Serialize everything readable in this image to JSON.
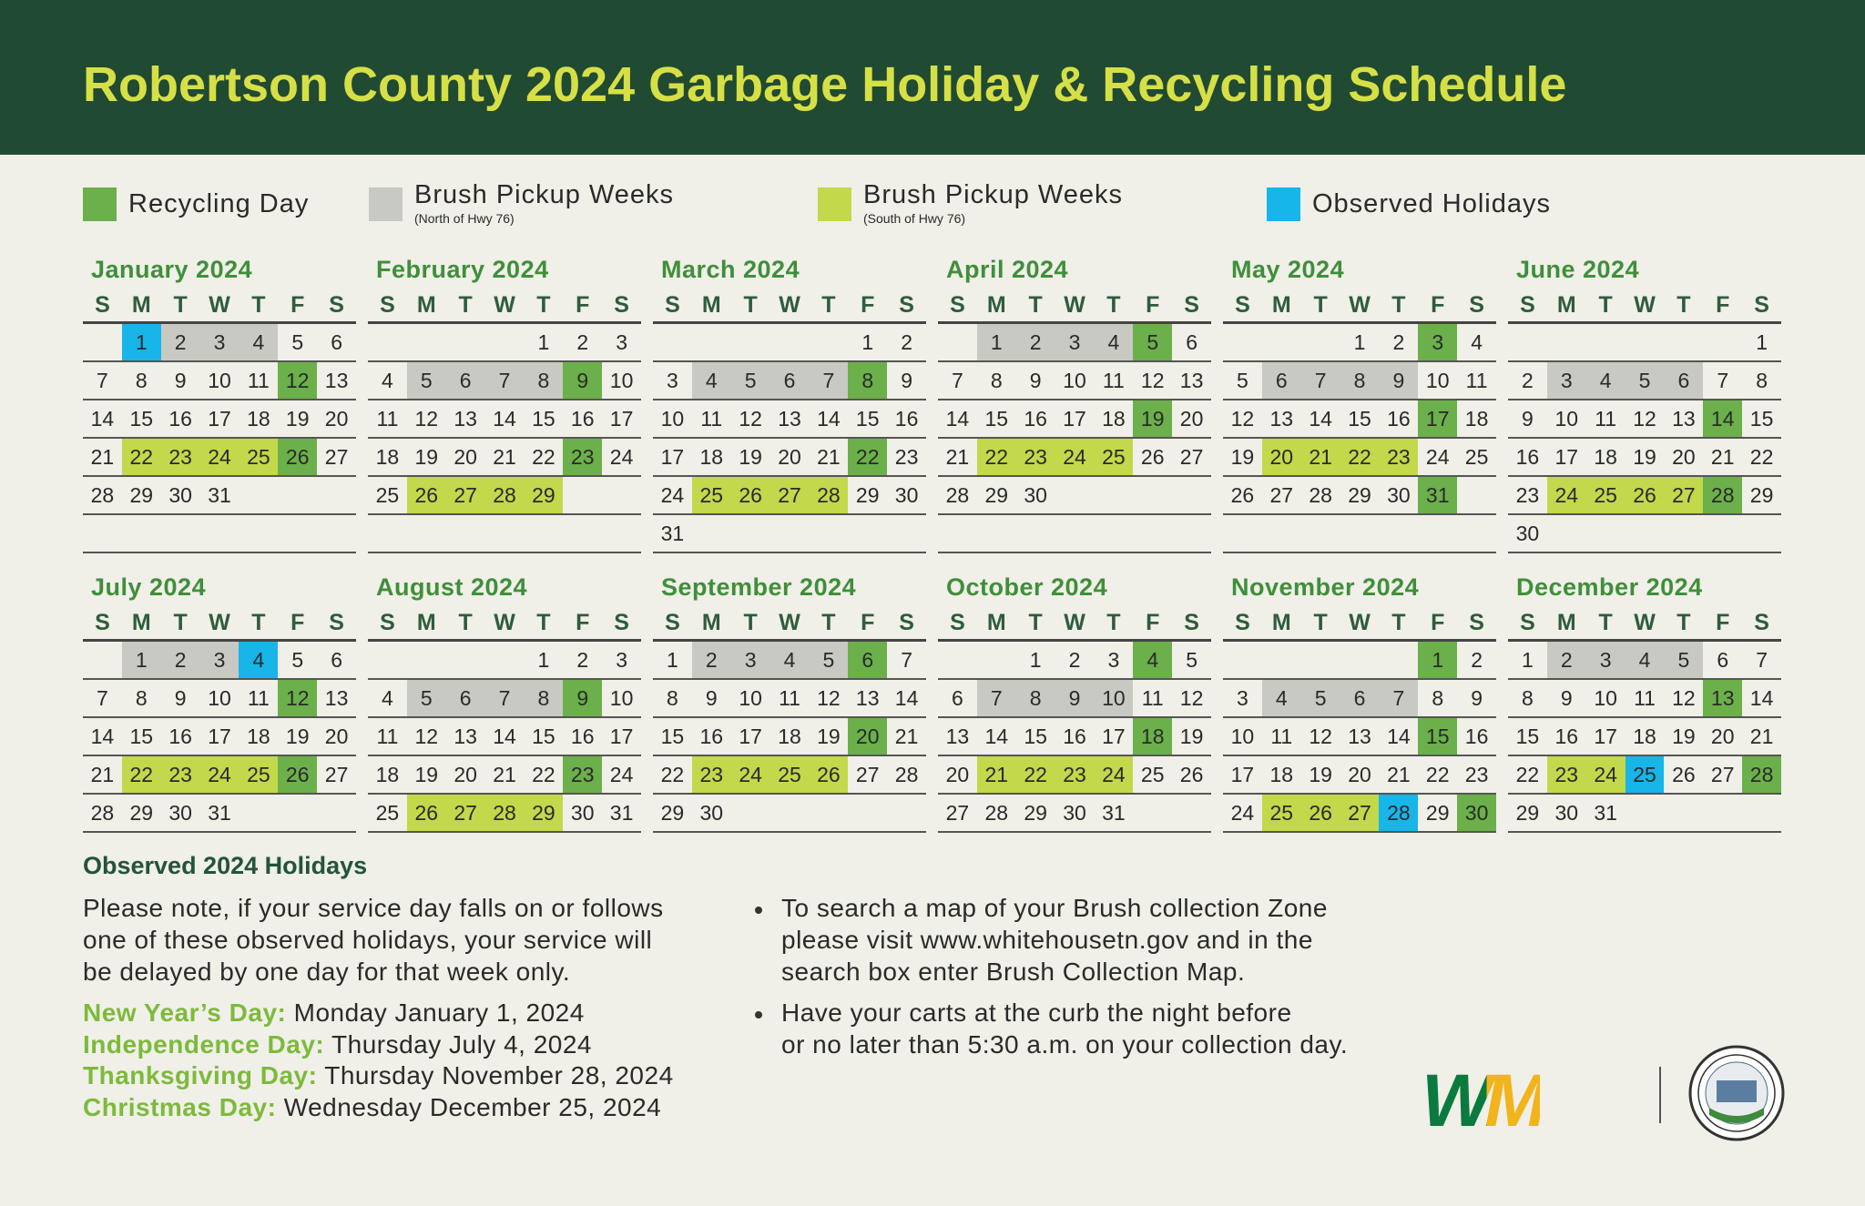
{
  "header": {
    "title": "Robertson County 2024 Garbage Holiday & Recycling Schedule"
  },
  "legend": [
    {
      "key": "recycling",
      "label": "Recycling Day",
      "color": "#6bb04a"
    },
    {
      "key": "north",
      "label": "Brush Pickup Weeks",
      "note": "(North of Hwy 76)",
      "color": "#c9c9c3"
    },
    {
      "key": "south",
      "label": "Brush Pickup Weeks",
      "note": "(South of Hwy 76)",
      "color": "#c3d84a"
    },
    {
      "key": "holiday",
      "label": "Observed Holidays",
      "color": "#17b5e8"
    }
  ],
  "weekdays": [
    "S",
    "M",
    "T",
    "W",
    "T",
    "F",
    "S"
  ],
  "months": [
    {
      "name": "January 2024",
      "weeks": [
        [
          null,
          [
            1,
            "holiday"
          ],
          [
            2,
            "north"
          ],
          [
            3,
            "north"
          ],
          [
            4,
            "north"
          ],
          5,
          6
        ],
        [
          7,
          8,
          9,
          10,
          11,
          [
            12,
            "recycling"
          ],
          13
        ],
        [
          14,
          15,
          16,
          17,
          18,
          19,
          20
        ],
        [
          21,
          [
            22,
            "south"
          ],
          [
            23,
            "south"
          ],
          [
            24,
            "south"
          ],
          [
            25,
            "south"
          ],
          [
            26,
            "recycling"
          ],
          27
        ],
        [
          28,
          29,
          30,
          31,
          null,
          null,
          null
        ]
      ]
    },
    {
      "name": "February 2024",
      "weeks": [
        [
          null,
          null,
          null,
          null,
          1,
          2,
          3
        ],
        [
          4,
          [
            5,
            "north"
          ],
          [
            6,
            "north"
          ],
          [
            7,
            "north"
          ],
          [
            8,
            "north"
          ],
          [
            9,
            "recycling"
          ],
          10
        ],
        [
          11,
          12,
          13,
          14,
          15,
          16,
          17
        ],
        [
          18,
          19,
          20,
          21,
          22,
          [
            23,
            "recycling"
          ],
          24
        ],
        [
          25,
          [
            26,
            "south"
          ],
          [
            27,
            "south"
          ],
          [
            28,
            "south"
          ],
          [
            29,
            "south"
          ],
          null,
          null
        ]
      ]
    },
    {
      "name": "March 2024",
      "weeks": [
        [
          null,
          null,
          null,
          null,
          null,
          1,
          2
        ],
        [
          3,
          [
            4,
            "north"
          ],
          [
            5,
            "north"
          ],
          [
            6,
            "north"
          ],
          [
            7,
            "north"
          ],
          [
            8,
            "recycling"
          ],
          9
        ],
        [
          10,
          11,
          12,
          13,
          14,
          15,
          16
        ],
        [
          17,
          18,
          19,
          20,
          21,
          [
            22,
            "recycling"
          ],
          23
        ],
        [
          24,
          [
            25,
            "south"
          ],
          [
            26,
            "south"
          ],
          [
            27,
            "south"
          ],
          [
            28,
            "south"
          ],
          29,
          30
        ],
        [
          31,
          null,
          null,
          null,
          null,
          null,
          null
        ]
      ]
    },
    {
      "name": "April 2024",
      "weeks": [
        [
          null,
          [
            1,
            "north"
          ],
          [
            2,
            "north"
          ],
          [
            3,
            "north"
          ],
          [
            4,
            "north"
          ],
          [
            5,
            "recycling"
          ],
          6
        ],
        [
          7,
          8,
          9,
          10,
          11,
          12,
          13
        ],
        [
          14,
          15,
          16,
          17,
          18,
          [
            19,
            "recycling"
          ],
          20
        ],
        [
          21,
          [
            22,
            "south"
          ],
          [
            23,
            "south"
          ],
          [
            24,
            "south"
          ],
          [
            25,
            "south"
          ],
          26,
          27
        ],
        [
          28,
          29,
          30,
          null,
          null,
          null,
          null
        ]
      ]
    },
    {
      "name": "May 2024",
      "weeks": [
        [
          null,
          null,
          null,
          1,
          2,
          [
            3,
            "recycling"
          ],
          4
        ],
        [
          5,
          [
            6,
            "north"
          ],
          [
            7,
            "north"
          ],
          [
            8,
            "north"
          ],
          [
            9,
            "north"
          ],
          10,
          11
        ],
        [
          12,
          13,
          14,
          15,
          16,
          [
            17,
            "recycling"
          ],
          18
        ],
        [
          19,
          [
            20,
            "south"
          ],
          [
            21,
            "south"
          ],
          [
            22,
            "south"
          ],
          [
            23,
            "south"
          ],
          24,
          25
        ],
        [
          26,
          27,
          28,
          29,
          30,
          [
            31,
            "recycling"
          ],
          null
        ]
      ]
    },
    {
      "name": "June 2024",
      "weeks": [
        [
          null,
          null,
          null,
          null,
          null,
          null,
          1
        ],
        [
          2,
          [
            3,
            "north"
          ],
          [
            4,
            "north"
          ],
          [
            5,
            "north"
          ],
          [
            6,
            "north"
          ],
          7,
          8
        ],
        [
          9,
          10,
          11,
          12,
          13,
          [
            14,
            "recycling"
          ],
          15
        ],
        [
          16,
          17,
          18,
          19,
          20,
          21,
          22
        ],
        [
          23,
          [
            24,
            "south"
          ],
          [
            25,
            "south"
          ],
          [
            26,
            "south"
          ],
          [
            27,
            "south"
          ],
          [
            28,
            "recycling"
          ],
          29
        ],
        [
          30,
          null,
          null,
          null,
          null,
          null,
          null
        ]
      ]
    },
    {
      "name": "July 2024",
      "weeks": [
        [
          null,
          [
            1,
            "north"
          ],
          [
            2,
            "north"
          ],
          [
            3,
            "north"
          ],
          [
            4,
            "holiday"
          ],
          5,
          6
        ],
        [
          7,
          8,
          9,
          10,
          11,
          [
            12,
            "recycling"
          ],
          13
        ],
        [
          14,
          15,
          16,
          17,
          18,
          19,
          20
        ],
        [
          21,
          [
            22,
            "south"
          ],
          [
            23,
            "south"
          ],
          [
            24,
            "south"
          ],
          [
            25,
            "south"
          ],
          [
            26,
            "recycling"
          ],
          27
        ],
        [
          28,
          29,
          30,
          31,
          null,
          null,
          null
        ]
      ]
    },
    {
      "name": "August 2024",
      "weeks": [
        [
          null,
          null,
          null,
          null,
          1,
          2,
          3
        ],
        [
          4,
          [
            5,
            "north"
          ],
          [
            6,
            "north"
          ],
          [
            7,
            "north"
          ],
          [
            8,
            "north"
          ],
          [
            9,
            "recycling"
          ],
          10
        ],
        [
          11,
          12,
          13,
          14,
          15,
          16,
          17
        ],
        [
          18,
          19,
          20,
          21,
          22,
          [
            23,
            "recycling"
          ],
          24
        ],
        [
          25,
          [
            26,
            "south"
          ],
          [
            27,
            "south"
          ],
          [
            28,
            "south"
          ],
          [
            29,
            "south"
          ],
          30,
          31
        ]
      ]
    },
    {
      "name": "September 2024",
      "weeks": [
        [
          1,
          [
            2,
            "north"
          ],
          [
            3,
            "north"
          ],
          [
            4,
            "north"
          ],
          [
            5,
            "north"
          ],
          [
            6,
            "recycling"
          ],
          7
        ],
        [
          8,
          9,
          10,
          11,
          12,
          13,
          14
        ],
        [
          15,
          16,
          17,
          18,
          19,
          [
            20,
            "recycling"
          ],
          21
        ],
        [
          22,
          [
            23,
            "south"
          ],
          [
            24,
            "south"
          ],
          [
            25,
            "south"
          ],
          [
            26,
            "south"
          ],
          27,
          28
        ],
        [
          29,
          30,
          null,
          null,
          null,
          null,
          null
        ]
      ]
    },
    {
      "name": "October 2024",
      "weeks": [
        [
          null,
          null,
          1,
          2,
          3,
          [
            4,
            "recycling"
          ],
          5
        ],
        [
          6,
          [
            7,
            "north"
          ],
          [
            8,
            "north"
          ],
          [
            9,
            "north"
          ],
          [
            10,
            "north"
          ],
          11,
          12
        ],
        [
          13,
          14,
          15,
          16,
          17,
          [
            18,
            "recycling"
          ],
          19
        ],
        [
          20,
          [
            21,
            "south"
          ],
          [
            22,
            "south"
          ],
          [
            23,
            "south"
          ],
          [
            24,
            "south"
          ],
          25,
          26
        ],
        [
          27,
          28,
          29,
          30,
          31,
          null,
          null
        ]
      ]
    },
    {
      "name": "November 2024",
      "weeks": [
        [
          null,
          null,
          null,
          null,
          null,
          [
            1,
            "recycling"
          ],
          2
        ],
        [
          3,
          [
            4,
            "north"
          ],
          [
            5,
            "north"
          ],
          [
            6,
            "north"
          ],
          [
            7,
            "north"
          ],
          8,
          9
        ],
        [
          10,
          11,
          12,
          13,
          14,
          [
            15,
            "recycling"
          ],
          16
        ],
        [
          17,
          18,
          19,
          20,
          21,
          22,
          23
        ],
        [
          24,
          [
            25,
            "south"
          ],
          [
            26,
            "south"
          ],
          [
            27,
            "south"
          ],
          [
            28,
            "holiday"
          ],
          29,
          [
            30,
            "recycling"
          ]
        ]
      ]
    },
    {
      "name": "December 2024",
      "weeks": [
        [
          1,
          [
            2,
            "north"
          ],
          [
            3,
            "north"
          ],
          [
            4,
            "north"
          ],
          [
            5,
            "north"
          ],
          6,
          7
        ],
        [
          8,
          9,
          10,
          11,
          12,
          [
            13,
            "recycling"
          ],
          14
        ],
        [
          15,
          16,
          17,
          18,
          19,
          20,
          21
        ],
        [
          22,
          [
            23,
            "south"
          ],
          [
            24,
            "south"
          ],
          [
            25,
            "holiday"
          ],
          26,
          27,
          [
            28,
            "recycling"
          ]
        ],
        [
          29,
          30,
          31,
          null,
          null,
          null,
          null
        ]
      ]
    }
  ],
  "holidays": {
    "title": "Observed 2024 Holidays",
    "note": [
      "Please note, if your service day falls on or follows",
      "one of these observed holidays, your service will",
      "be delayed by one day for that week only."
    ],
    "items": [
      {
        "name": "New Year’s Day:",
        "date": "Monday January 1, 2024"
      },
      {
        "name": "Independence Day:",
        "date": "Thursday July 4, 2024"
      },
      {
        "name": "Thanksgiving Day:",
        "date": "Thursday November 28, 2024"
      },
      {
        "name": "Christmas Day:",
        "date": "Wednesday December 25, 2024"
      }
    ]
  },
  "bullets": [
    [
      "To search a map of your Brush collection Zone",
      "please visit www.whitehousetn.gov and in the",
      "search box enter Brush Collection Map."
    ],
    [
      "Have your carts at the curb the night before",
      "or no later than 5:30 a.m. on your collection day."
    ]
  ],
  "logo": "WM"
}
